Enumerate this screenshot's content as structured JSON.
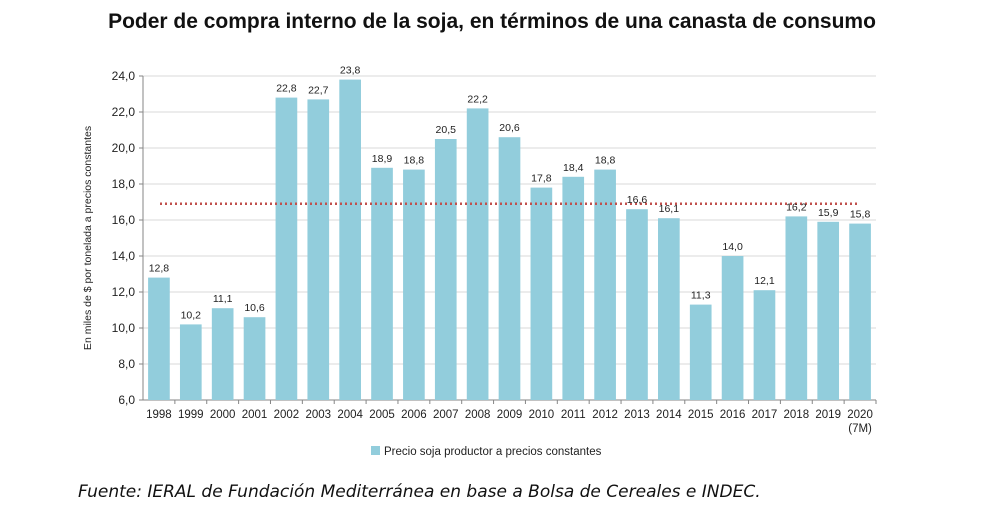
{
  "title": "Poder de compra interno de la soja, en términos de una canasta de consumo",
  "source": "Fuente: IERAL de Fundación Mediterránea en base a Bolsa de Cereales e INDEC.",
  "chart_data": {
    "type": "bar",
    "ylabel": "En miles de $ por tonelada a precios constantes",
    "ylim": [
      6,
      24
    ],
    "yticks": [
      "6,0",
      "8,0",
      "10,0",
      "12,0",
      "14,0",
      "16,0",
      "18,0",
      "20,0",
      "22,0",
      "24,0"
    ],
    "grid": true,
    "legend_position": "bottom",
    "bar_color": "#92CDDC",
    "reference_line": {
      "value": 16.9,
      "color": "#C0504D",
      "style": "dotted"
    },
    "categories": [
      "1998",
      "1999",
      "2000",
      "2001",
      "2002",
      "2003",
      "2004",
      "2005",
      "2006",
      "2007",
      "2008",
      "2009",
      "2010",
      "2011",
      "2012",
      "2013",
      "2014",
      "2015",
      "2016",
      "2017",
      "2018",
      "2019",
      "2020"
    ],
    "category_sublabels": [
      "",
      "",
      "",
      "",
      "",
      "",
      "",
      "",
      "",
      "",
      "",
      "",
      "",
      "",
      "",
      "",
      "",
      "",
      "",
      "",
      "",
      "",
      "(7M)"
    ],
    "series": [
      {
        "name": "Precio soja productor  a precios constantes",
        "values": [
          12.8,
          10.2,
          11.1,
          10.6,
          22.8,
          22.7,
          23.8,
          18.9,
          18.8,
          20.5,
          22.2,
          20.6,
          17.8,
          18.4,
          18.8,
          16.6,
          16.1,
          11.3,
          14.0,
          12.1,
          16.2,
          15.9,
          15.8
        ],
        "labels": [
          "12,8",
          "10,2",
          "11,1",
          "10,6",
          "22,8",
          "22,7",
          "23,8",
          "18,9",
          "18,8",
          "20,5",
          "22,2",
          "20,6",
          "17,8",
          "18,4",
          "18,8",
          "16,6",
          "16,1",
          "11,3",
          "14,0",
          "12,1",
          "16,2",
          "15,9",
          "15,8"
        ]
      }
    ]
  }
}
